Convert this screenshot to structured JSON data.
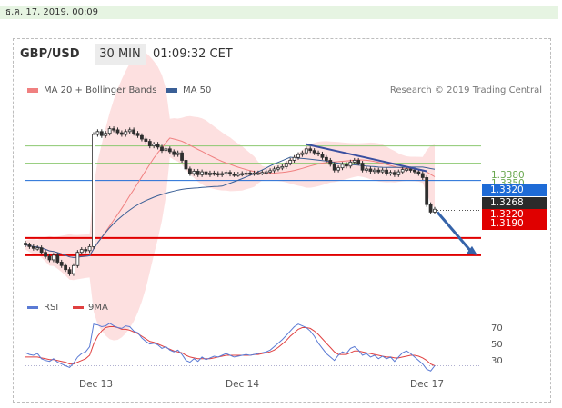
{
  "header": {
    "timestamp": "ธ.ค. 17, 2019, 00:09",
    "pair": "GBP/USD",
    "timeframe": "30 MIN",
    "time": "01:09:32 CET"
  },
  "legend": {
    "ma20": "MA 20 + Bollinger Bands",
    "ma50": "MA 50",
    "credit": "Research © 2019 Trading Central",
    "rsi": "RSI",
    "rsi_ma": "9MA"
  },
  "price_labels": {
    "r2": "1.3380",
    "r1": "1.3350",
    "pivot": "1.3320",
    "last": "1.3268",
    "s1": "1.3220",
    "s2": "1.3190"
  },
  "colors": {
    "ma20": "#f08080",
    "ma50": "#3a5f96",
    "bollinger": "#fde0e0",
    "pivot": "#1e6bd6",
    "support": "#e00000",
    "resistance": "#8cc870",
    "candle": "#2f2f2f",
    "rsi": "#5a7ad4",
    "rsi_ma": "#e04040"
  },
  "chart_data": {
    "type": "candlestick",
    "ylim": [
      1.3125,
      1.346
    ],
    "levels": {
      "resistance": [
        1.338,
        1.335
      ],
      "pivot": 1.332,
      "last": 1.3268,
      "support": [
        1.322,
        1.319
      ]
    },
    "x_labels": [
      "Dec 13",
      "Dec 14",
      "Dec 17"
    ],
    "rsi_ticks": [
      70,
      50,
      30
    ],
    "rsi_ylim": [
      20,
      85
    ],
    "close": [
      1.3208,
      1.3205,
      1.3202,
      1.3203,
      1.3195,
      1.3188,
      1.3182,
      1.319,
      1.3178,
      1.3172,
      1.3165,
      1.3158,
      1.3172,
      1.3195,
      1.32,
      1.3198,
      1.3205,
      1.34,
      1.3405,
      1.3398,
      1.3402,
      1.341,
      1.3408,
      1.3403,
      1.34,
      1.3405,
      1.3408,
      1.3402,
      1.3398,
      1.3392,
      1.3388,
      1.338,
      1.3383,
      1.3378,
      1.3372,
      1.3375,
      1.337,
      1.3365,
      1.3368,
      1.3355,
      1.334,
      1.3332,
      1.3336,
      1.333,
      1.3335,
      1.333,
      1.3333,
      1.3332,
      1.333,
      1.3332,
      1.3334,
      1.3331,
      1.333,
      1.3331,
      1.3332,
      1.3333,
      1.3332,
      1.3333,
      1.3333,
      1.3334,
      1.3335,
      1.3337,
      1.334,
      1.3342,
      1.3344,
      1.335,
      1.3355,
      1.336,
      1.3365,
      1.3368,
      1.3375,
      1.3372,
      1.3368,
      1.3366,
      1.336,
      1.3355,
      1.3348,
      1.3338,
      1.3342,
      1.3348,
      1.3345,
      1.3352,
      1.3355,
      1.335,
      1.3338,
      1.334,
      1.3336,
      1.3338,
      1.3335,
      1.3338,
      1.3332,
      1.3334,
      1.333,
      1.3335,
      1.3339,
      1.334,
      1.3338,
      1.3335,
      1.3332,
      1.3325,
      1.3278,
      1.3265,
      1.327
    ],
    "rsi": [
      45,
      43,
      42,
      44,
      38,
      36,
      35,
      38,
      34,
      32,
      30,
      28,
      33,
      40,
      44,
      46,
      52,
      78,
      77,
      75,
      76,
      79,
      76,
      74,
      73,
      76,
      75,
      70,
      68,
      62,
      58,
      55,
      56,
      54,
      50,
      52,
      48,
      46,
      48,
      43,
      36,
      34,
      38,
      35,
      40,
      37,
      39,
      41,
      40,
      42,
      44,
      42,
      40,
      41,
      42,
      43,
      42,
      43,
      44,
      45,
      46,
      48,
      52,
      56,
      60,
      65,
      70,
      75,
      78,
      76,
      74,
      70,
      64,
      56,
      50,
      44,
      40,
      36,
      42,
      46,
      44,
      50,
      52,
      48,
      42,
      44,
      40,
      42,
      38,
      41,
      38,
      40,
      35,
      40,
      45,
      47,
      44,
      40,
      36,
      32,
      26,
      24,
      30
    ],
    "rsi_ma": [
      40,
      40,
      40,
      40,
      39,
      38,
      37,
      37,
      36,
      35,
      34,
      32,
      32,
      34,
      36,
      38,
      42,
      55,
      64,
      70,
      74,
      75,
      75,
      74,
      72,
      72,
      71,
      69,
      67,
      64,
      61,
      58,
      57,
      55,
      53,
      51,
      49,
      47,
      46,
      45,
      42,
      40,
      39,
      38,
      38,
      38,
      38,
      39,
      40,
      41,
      42,
      42,
      42,
      42,
      42,
      42,
      42,
      43,
      43,
      44,
      45,
      46,
      48,
      51,
      55,
      59,
      64,
      68,
      72,
      74,
      74,
      73,
      70,
      66,
      61,
      56,
      51,
      46,
      43,
      43,
      43,
      45,
      47,
      47,
      46,
      45,
      44,
      43,
      42,
      41,
      40,
      40,
      39,
      39,
      40,
      41,
      42,
      42,
      41,
      39,
      36,
      32,
      30
    ]
  }
}
